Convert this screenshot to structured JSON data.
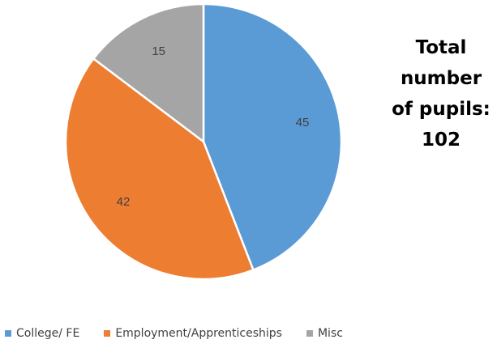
{
  "chart_data": {
    "type": "pie",
    "categories": [
      "College/ FE",
      "Employment/Apprenticeships",
      "Misc"
    ],
    "values": [
      45,
      42,
      15
    ],
    "colors": [
      "#5B9BD5",
      "#ED7D31",
      "#A5A5A5"
    ],
    "data_labels": [
      "45",
      "42",
      "15"
    ],
    "legend_position": "bottom",
    "title": ""
  },
  "annotation": {
    "lines": [
      "Total",
      "number",
      "of pupils:",
      "102"
    ]
  }
}
